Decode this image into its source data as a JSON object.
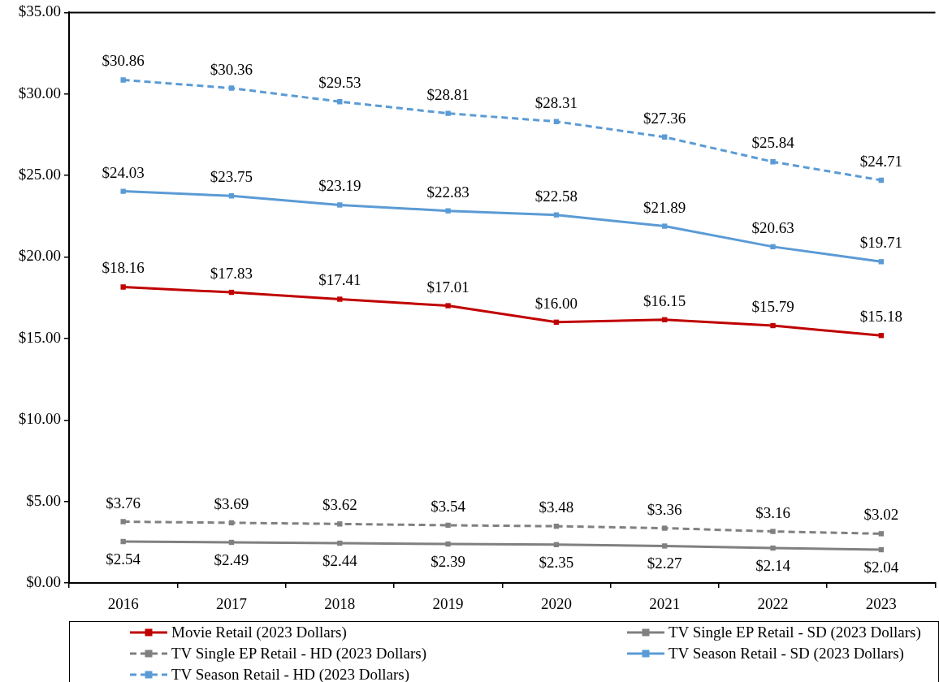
{
  "chart_data": {
    "type": "line",
    "categories": [
      "2016",
      "2017",
      "2018",
      "2019",
      "2020",
      "2021",
      "2022",
      "2023"
    ],
    "ylim": [
      0,
      35
    ],
    "yticks": [
      {
        "value": 0,
        "label": "$0.00"
      },
      {
        "value": 5,
        "label": "$5.00"
      },
      {
        "value": 10,
        "label": "$10.00"
      },
      {
        "value": 15,
        "label": "$15.00"
      },
      {
        "value": 20,
        "label": "$20.00"
      },
      {
        "value": 25,
        "label": "$25.00"
      },
      {
        "value": 30,
        "label": "$30.00"
      },
      {
        "value": 35,
        "label": "$35.00"
      }
    ],
    "grid": false,
    "legend": "bottom",
    "marker": "square",
    "series": [
      {
        "name": "Movie Retail (2023 Dollars)",
        "color": "#c00000",
        "line_style": "solid",
        "values": [
          18.16,
          17.83,
          17.41,
          17.01,
          16.0,
          16.15,
          15.79,
          15.18
        ],
        "value_labels": [
          "$18.16",
          "$17.83",
          "$17.41",
          "$17.01",
          "$16.00",
          "$16.15",
          "$15.79",
          "$15.18"
        ]
      },
      {
        "name": "TV Single EP Retail - SD (2023 Dollars)",
        "color": "#808080",
        "line_style": "solid",
        "values": [
          2.54,
          2.49,
          2.44,
          2.39,
          2.35,
          2.27,
          2.14,
          2.04
        ],
        "value_labels": [
          "$2.54",
          "$2.49",
          "$2.44",
          "$2.39",
          "$2.35",
          "$2.27",
          "$2.14",
          "$2.04"
        ]
      },
      {
        "name": "TV Single EP Retail - HD (2023 Dollars)",
        "color": "#808080",
        "line_style": "dashed",
        "values": [
          3.76,
          3.69,
          3.62,
          3.54,
          3.48,
          3.36,
          3.16,
          3.02
        ],
        "value_labels": [
          "$3.76",
          "$3.69",
          "$3.62",
          "$3.54",
          "$3.48",
          "$3.36",
          "$3.16",
          "$3.02"
        ]
      },
      {
        "name": "TV Season Retail - SD (2023 Dollars)",
        "color": "#5b9bd5",
        "line_style": "solid",
        "values": [
          24.03,
          23.75,
          23.19,
          22.83,
          22.58,
          21.89,
          20.63,
          19.71
        ],
        "value_labels": [
          "$24.03",
          "$23.75",
          "$23.19",
          "$22.83",
          "$22.58",
          "$21.89",
          "$20.63",
          "$19.71"
        ]
      },
      {
        "name": "TV Season Retail - HD (2023 Dollars)",
        "color": "#5b9bd5",
        "line_style": "dashed",
        "values": [
          30.86,
          30.36,
          29.53,
          28.81,
          28.31,
          27.36,
          25.84,
          24.71
        ],
        "value_labels": [
          "$30.86",
          "$30.36",
          "$29.53",
          "$28.81",
          "$28.31",
          "$27.36",
          "$25.84",
          "$24.71"
        ]
      }
    ]
  }
}
